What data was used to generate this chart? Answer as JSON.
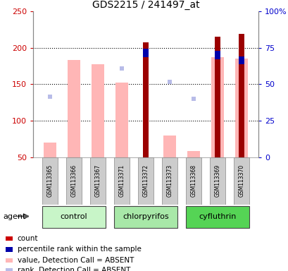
{
  "title": "GDS2215 / 241497_at",
  "samples": [
    "GSM113365",
    "GSM113366",
    "GSM113367",
    "GSM113371",
    "GSM113372",
    "GSM113373",
    "GSM113368",
    "GSM113369",
    "GSM113370"
  ],
  "value_absent": [
    70,
    183,
    178,
    152,
    null,
    80,
    58,
    187,
    185
  ],
  "rank_absent": [
    133,
    null,
    null,
    172,
    null,
    153,
    130,
    null,
    185
  ],
  "count_value": [
    null,
    null,
    null,
    null,
    208,
    null,
    null,
    215,
    219
  ],
  "percentile_rank": [
    null,
    null,
    null,
    null,
    193,
    null,
    null,
    190,
    183
  ],
  "ylim_left": [
    50,
    250
  ],
  "ylim_right": [
    0,
    100
  ],
  "left_ticks": [
    50,
    100,
    150,
    200,
    250
  ],
  "right_ticks": [
    0,
    25,
    50,
    75,
    100
  ],
  "right_tick_labels": [
    "0",
    "25",
    "50",
    "75",
    "100%"
  ],
  "left_color": "#cc0000",
  "right_color": "#0000cc",
  "count_color": "#9b0000",
  "percentile_color": "#0000aa",
  "value_absent_color": "#ffb6b6",
  "rank_absent_color": "#b8bce8",
  "group_ranges": [
    [
      0,
      2,
      "control",
      "#c8f5c8"
    ],
    [
      3,
      5,
      "chlorpyrifos",
      "#a8e8a8"
    ],
    [
      6,
      8,
      "cyfluthrin",
      "#55d455"
    ]
  ],
  "legend_items": [
    {
      "color": "#cc0000",
      "label": "count"
    },
    {
      "color": "#0000aa",
      "label": "percentile rank within the sample"
    },
    {
      "color": "#ffb6b6",
      "label": "value, Detection Call = ABSENT"
    },
    {
      "color": "#b8bce8",
      "label": "rank, Detection Call = ABSENT"
    }
  ]
}
